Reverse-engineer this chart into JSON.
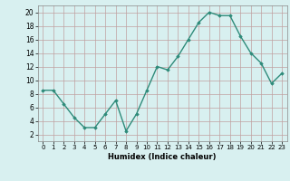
{
  "x": [
    0,
    1,
    2,
    3,
    4,
    5,
    6,
    7,
    8,
    9,
    10,
    11,
    12,
    13,
    14,
    15,
    16,
    17,
    18,
    19,
    20,
    21,
    22,
    23
  ],
  "y": [
    8.5,
    8.5,
    6.5,
    4.5,
    3.0,
    3.0,
    5.0,
    7.0,
    2.5,
    5.0,
    8.5,
    12.0,
    11.5,
    13.5,
    16.0,
    18.5,
    20.0,
    19.5,
    19.5,
    16.5,
    14.0,
    12.5,
    9.5,
    11.0
  ],
  "xlabel": "Humidex (Indice chaleur)",
  "xlim": [
    -0.5,
    23.5
  ],
  "ylim": [
    1,
    21
  ],
  "yticks": [
    2,
    4,
    6,
    8,
    10,
    12,
    14,
    16,
    18,
    20
  ],
  "xticks": [
    0,
    1,
    2,
    3,
    4,
    5,
    6,
    7,
    8,
    9,
    10,
    11,
    12,
    13,
    14,
    15,
    16,
    17,
    18,
    19,
    20,
    21,
    22,
    23
  ],
  "line_color": "#2e8b7a",
  "marker": "D",
  "marker_size": 1.8,
  "bg_color": "#d8f0f0",
  "grid_color": "#c0a0a0",
  "line_width": 1.0,
  "tick_fontsize_x": 5.0,
  "tick_fontsize_y": 5.5,
  "xlabel_fontsize": 6.0
}
